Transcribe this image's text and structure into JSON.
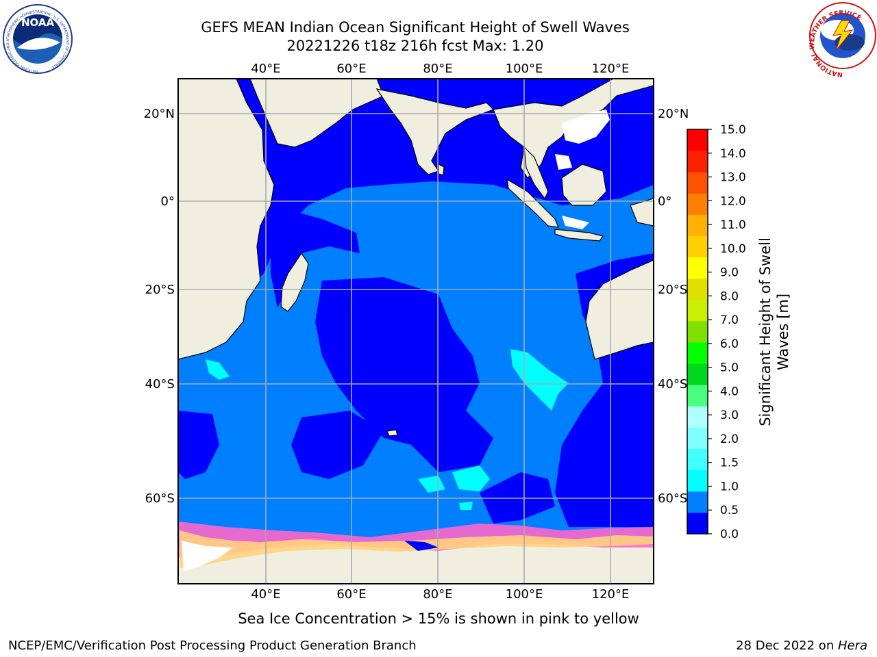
{
  "title": {
    "line1": "GEFS MEAN Indian Ocean Significant Height of Swell Waves",
    "line2": "20221226 t18z 216h fcst   Max: 1.20"
  },
  "map": {
    "lon_labels_top": [
      "40°E",
      "60°E",
      "80°E",
      "100°E",
      "120°E"
    ],
    "lon_labels_bottom": [
      "40°E",
      "60°E",
      "80°E",
      "100°E",
      "120°E"
    ],
    "lat_labels_left": [
      "20°N",
      "0°",
      "20°S",
      "40°S",
      "60°S"
    ],
    "lat_labels_right": [
      "20°N",
      "0°",
      "20°S",
      "40°S",
      "60°S"
    ],
    "colors": {
      "land": "#efeedf",
      "ocean_low": "#0000ff",
      "ocean_mid": "#0080ff",
      "ocean_high": "#00ffff",
      "sea_ice": "#ff66cc",
      "sea_ice_dense": "#ffd280",
      "grid": "#aaaaaa"
    }
  },
  "colorbar": {
    "label_line1": "Significant Height of Swell",
    "label_line2": "Waves [m]",
    "ticks": [
      "15.0",
      "14.0",
      "13.0",
      "12.0",
      "11.0",
      "10.0",
      "9.0",
      "8.0",
      "7.0",
      "6.0",
      "5.0",
      "4.0",
      "3.0",
      "2.0",
      "1.5",
      "1.0",
      "0.5",
      "0.0"
    ],
    "colors": [
      "#0000ff",
      "#0080ff",
      "#00ffff",
      "#40ffff",
      "#80ffff",
      "#b0ffff",
      "#48ff80",
      "#00d820",
      "#00ff00",
      "#80e000",
      "#c8f000",
      "#e0e000",
      "#ffff00",
      "#ffd000",
      "#ffb000",
      "#ff8000",
      "#ff5000",
      "#ff2000",
      "#ff0000"
    ]
  },
  "logos": {
    "left_text": "NOAA",
    "left_ring": "NATIONAL OCEANIC AND ATMOSPHERIC ADMINISTRATION · U.S. DEPARTMENT OF COMMERCE",
    "right_ring": "NATIONAL WEATHER SERVICE"
  },
  "caption": "Sea Ice Concentration > 15% is shown in pink to yellow",
  "footer": {
    "left": "NCEP/EMC/Verification Post Processing Product Generation Branch",
    "right_date": "28 Dec 2022 on ",
    "right_host": "Hera"
  }
}
